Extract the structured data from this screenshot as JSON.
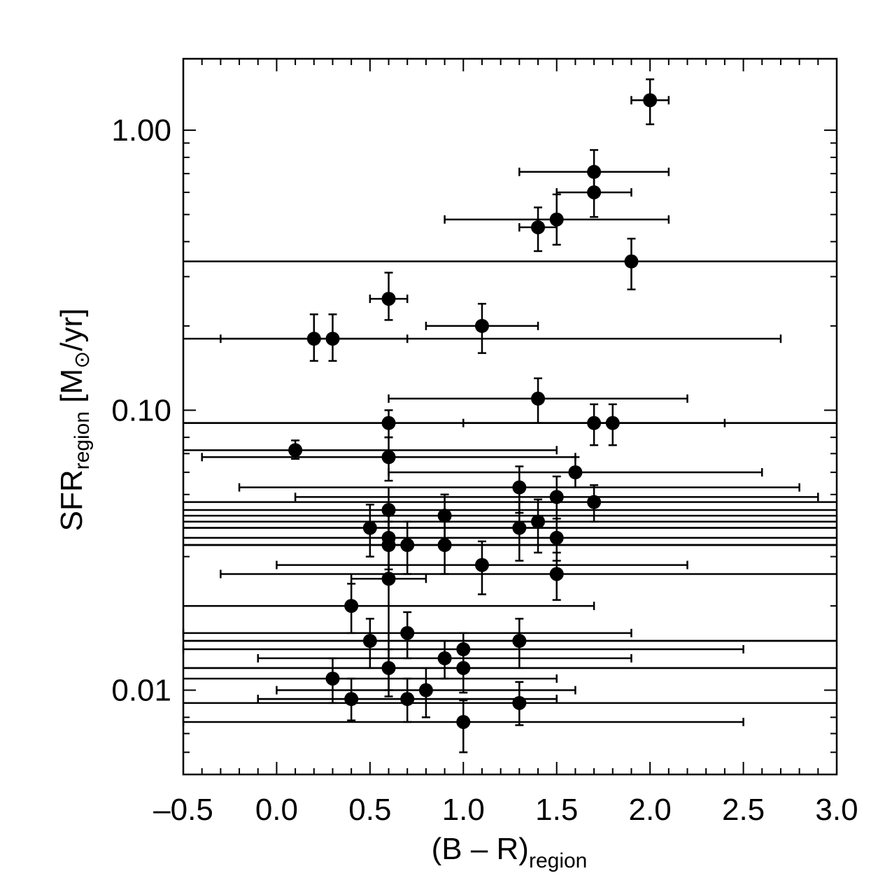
{
  "chart_data": {
    "type": "scatter",
    "xlabel": {
      "main": "(B – R)",
      "sub": "region"
    },
    "ylabel": {
      "main": "SFR",
      "sub": "region",
      "unit_prefix": " [M",
      "unit_symbol": "⊙",
      "unit_suffix": "/yr]"
    },
    "xlim": [
      -0.5,
      3.0
    ],
    "ylim": [
      0.005,
      1.8
    ],
    "y_scale": "log",
    "x_ticks": [
      "-0.5",
      "0.0",
      "0.5",
      "1.0",
      "1.5",
      "2.0",
      "2.5",
      "3.0"
    ],
    "x_tick_values": [
      -0.5,
      0.0,
      0.5,
      1.0,
      1.5,
      2.0,
      2.5,
      3.0
    ],
    "x_tick_texts": [
      "–0.5",
      "0.0",
      "0.5",
      "1.0",
      "1.5",
      "2.0",
      "2.5",
      "3.0"
    ],
    "y_tick_values": [
      0.01,
      0.1,
      1.0
    ],
    "y_tick_texts": [
      "0.01",
      "0.10",
      "1.00"
    ],
    "grid": false,
    "legend": "none",
    "points": [
      {
        "x": 2.0,
        "y": 1.28,
        "xerr": [
          0.1,
          0.1
        ],
        "yerr": [
          1.05,
          1.52
        ]
      },
      {
        "x": 1.7,
        "y": 0.71,
        "xerr": [
          0.4,
          0.4
        ],
        "yerr": [
          0.6,
          0.85
        ]
      },
      {
        "x": 1.7,
        "y": 0.6,
        "xerr": [
          0.2,
          0.2
        ],
        "yerr": [
          0.49,
          0.71
        ]
      },
      {
        "x": 1.5,
        "y": 0.48,
        "xerr": [
          0.6,
          0.6
        ],
        "yerr": [
          0.39,
          0.59
        ]
      },
      {
        "x": 1.4,
        "y": 0.45,
        "xerr": [
          0.1,
          0.1
        ],
        "yerr": [
          0.37,
          0.53
        ]
      },
      {
        "x": 1.9,
        "y": 0.34,
        "xerr": [
          5.0,
          5.0
        ],
        "yerr": [
          0.27,
          0.41
        ]
      },
      {
        "x": 0.6,
        "y": 0.25,
        "xerr": [
          0.1,
          0.1
        ],
        "yerr": [
          0.21,
          0.31
        ]
      },
      {
        "x": 1.1,
        "y": 0.2,
        "xerr": [
          0.3,
          0.3
        ],
        "yerr": [
          0.16,
          0.24
        ]
      },
      {
        "x": 0.2,
        "y": 0.18,
        "xerr": [
          0.5,
          0.5
        ],
        "yerr": [
          0.15,
          0.22
        ]
      },
      {
        "x": 0.3,
        "y": 0.18,
        "xerr": [
          2.4,
          2.4
        ],
        "yerr": [
          0.15,
          0.22
        ]
      },
      {
        "x": 1.4,
        "y": 0.11,
        "xerr": [
          0.8,
          0.8
        ],
        "yerr": [
          0.09,
          0.13
        ]
      },
      {
        "x": 0.6,
        "y": 0.09,
        "xerr": [
          5.0,
          5.0
        ],
        "yerr": [
          0.08,
          0.1
        ]
      },
      {
        "x": 1.7,
        "y": 0.09,
        "xerr": [
          0.7,
          0.7
        ],
        "yerr": [
          0.075,
          0.105
        ]
      },
      {
        "x": 1.8,
        "y": 0.09,
        "xerr": [
          5.0,
          5.0
        ],
        "yerr": [
          0.075,
          0.105
        ]
      },
      {
        "x": 0.1,
        "y": 0.072,
        "xerr": [
          1.4,
          1.4
        ],
        "yerr": [
          0.067,
          0.078
        ]
      },
      {
        "x": 0.6,
        "y": 0.068,
        "xerr": [
          1.0,
          1.0
        ],
        "yerr": [
          0.056,
          0.08
        ]
      },
      {
        "x": 1.6,
        "y": 0.06,
        "xerr": [
          1.0,
          1.0
        ],
        "yerr": [
          0.053,
          0.068
        ]
      },
      {
        "x": 1.3,
        "y": 0.053,
        "xerr": [
          1.5,
          1.5
        ],
        "yerr": [
          0.043,
          0.063
        ]
      },
      {
        "x": 1.5,
        "y": 0.049,
        "xerr": [
          1.4,
          1.4
        ],
        "yerr": [
          0.04,
          0.058
        ]
      },
      {
        "x": 1.7,
        "y": 0.047,
        "xerr": [
          5.0,
          5.0
        ],
        "yerr": [
          0.04,
          0.054
        ]
      },
      {
        "x": 0.6,
        "y": 0.044,
        "xerr": [
          5.0,
          5.0
        ],
        "yerr": [
          0.036,
          0.053
        ]
      },
      {
        "x": 0.9,
        "y": 0.042,
        "xerr": [
          5.0,
          5.0
        ],
        "yerr": [
          0.034,
          0.05
        ]
      },
      {
        "x": 1.4,
        "y": 0.04,
        "xerr": [
          5.0,
          5.0
        ],
        "yerr": [
          0.031,
          0.048
        ]
      },
      {
        "x": 0.5,
        "y": 0.038,
        "xerr": [
          5.0,
          5.0
        ],
        "yerr": [
          0.03,
          0.046
        ]
      },
      {
        "x": 1.3,
        "y": 0.038,
        "xerr": [
          5.0,
          5.0
        ],
        "yerr": [
          0.029,
          0.047
        ]
      },
      {
        "x": 0.6,
        "y": 0.035,
        "xerr": [
          5.0,
          5.0
        ],
        "yerr": [
          0.027,
          0.043
        ]
      },
      {
        "x": 1.5,
        "y": 0.035,
        "xerr": [
          5.0,
          5.0
        ],
        "yerr": [
          0.029,
          0.041
        ]
      },
      {
        "x": 0.6,
        "y": 0.033,
        "xerr": [
          5.0,
          5.0
        ],
        "yerr": [
          0.026,
          0.04
        ]
      },
      {
        "x": 0.7,
        "y": 0.033,
        "xerr": [
          5.0,
          5.0
        ],
        "yerr": [
          0.026,
          0.04
        ]
      },
      {
        "x": 0.9,
        "y": 0.033,
        "xerr": [
          5.0,
          5.0
        ],
        "yerr": [
          0.026,
          0.04
        ]
      },
      {
        "x": 1.1,
        "y": 0.028,
        "xerr": [
          1.1,
          1.1
        ],
        "yerr": [
          0.022,
          0.034
        ]
      },
      {
        "x": 0.6,
        "y": 0.025,
        "xerr": [
          0.2,
          0.2
        ],
        "yerr": [
          0.01,
          0.04
        ]
      },
      {
        "x": 1.5,
        "y": 0.026,
        "xerr": [
          1.8,
          1.8
        ],
        "yerr": [
          0.021,
          0.031
        ]
      },
      {
        "x": 0.4,
        "y": 0.02,
        "xerr": [
          1.3,
          1.3
        ],
        "yerr": [
          0.016,
          0.024
        ]
      },
      {
        "x": 0.7,
        "y": 0.016,
        "xerr": [
          1.2,
          1.2
        ],
        "yerr": [
          0.013,
          0.019
        ]
      },
      {
        "x": 0.5,
        "y": 0.015,
        "xerr": [
          5.0,
          5.0
        ],
        "yerr": [
          0.012,
          0.018
        ]
      },
      {
        "x": 1.3,
        "y": 0.015,
        "xerr": [
          5.0,
          5.0
        ],
        "yerr": [
          0.012,
          0.018
        ]
      },
      {
        "x": 1.0,
        "y": 0.014,
        "xerr": [
          1.5,
          1.5
        ],
        "yerr": [
          0.012,
          0.016
        ]
      },
      {
        "x": 0.9,
        "y": 0.013,
        "xerr": [
          1.0,
          1.0
        ],
        "yerr": [
          0.011,
          0.015
        ]
      },
      {
        "x": 0.6,
        "y": 0.012,
        "xerr": [
          5.0,
          5.0
        ],
        "yerr": [
          0.0095,
          0.014
        ]
      },
      {
        "x": 1.0,
        "y": 0.012,
        "xerr": [
          5.0,
          5.0
        ],
        "yerr": [
          0.0098,
          0.014
        ]
      },
      {
        "x": 0.3,
        "y": 0.011,
        "xerr": [
          1.2,
          1.2
        ],
        "yerr": [
          0.009,
          0.013
        ]
      },
      {
        "x": 0.8,
        "y": 0.01,
        "xerr": [
          0.8,
          0.8
        ],
        "yerr": [
          0.008,
          0.012
        ]
      },
      {
        "x": 0.4,
        "y": 0.0093,
        "xerr": [
          0.5,
          1.1
        ],
        "yerr": [
          0.0078,
          0.011
        ]
      },
      {
        "x": 0.7,
        "y": 0.0093,
        "xerr": [
          0.8,
          0.8
        ],
        "yerr": [
          0.0077,
          0.011
        ]
      },
      {
        "x": 1.3,
        "y": 0.009,
        "xerr": [
          5.0,
          5.0
        ],
        "yerr": [
          0.0075,
          0.0107
        ]
      },
      {
        "x": 1.0,
        "y": 0.0077,
        "xerr": [
          1.5,
          1.5
        ],
        "yerr": [
          0.006,
          0.0092
        ]
      }
    ]
  }
}
